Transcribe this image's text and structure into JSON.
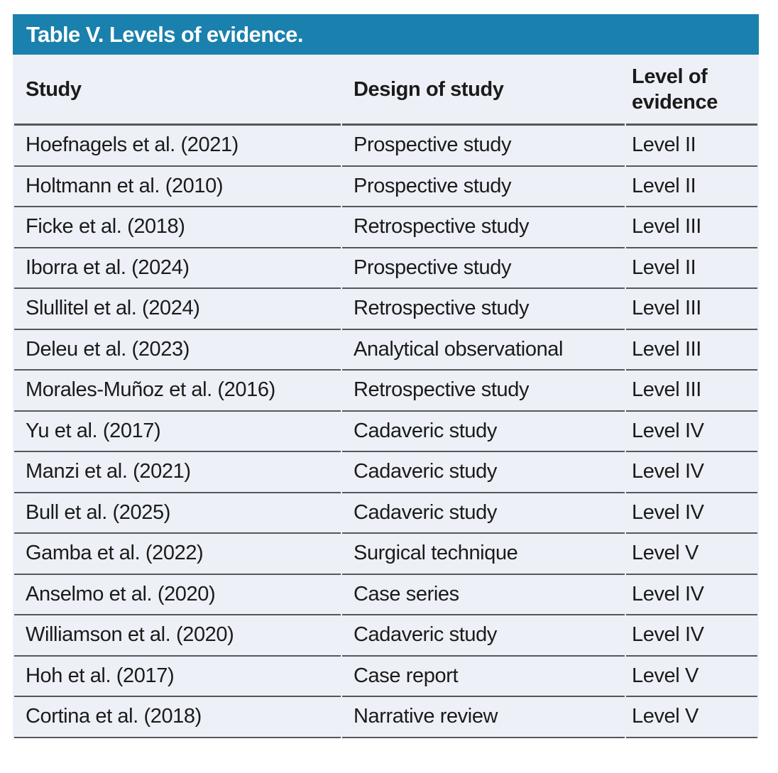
{
  "title": "Table V. Levels of evidence.",
  "columns": {
    "study": "Study",
    "design": "Design of study",
    "level": "Level of evidence"
  },
  "rows": [
    {
      "study": "Hoefnagels et al. (2021)",
      "design": "Prospective study",
      "level": "Level II"
    },
    {
      "study": "Holtmann et al. (2010)",
      "design": "Prospective study",
      "level": "Level II"
    },
    {
      "study": "Ficke et al. (2018)",
      "design": "Retrospective study",
      "level": "Level III"
    },
    {
      "study": "Iborra et al. (2024)",
      "design": "Prospective study",
      "level": "Level II"
    },
    {
      "study": "Slullitel et al. (2024)",
      "design": "Retrospective study",
      "level": "Level III"
    },
    {
      "study": "Deleu et al. (2023)",
      "design": "Analytical observational",
      "level": "Level III"
    },
    {
      "study": "Morales-Muñoz et al. (2016)",
      "design": "Retrospective study",
      "level": "Level III"
    },
    {
      "study": "Yu et al. (2017)",
      "design": "Cadaveric study",
      "level": "Level IV"
    },
    {
      "study": "Manzi et al. (2021)",
      "design": "Cadaveric study",
      "level": "Level IV"
    },
    {
      "study": "Bull et al. (2025)",
      "design": "Cadaveric study",
      "level": "Level IV"
    },
    {
      "study": "Gamba et al. (2022)",
      "design": "Surgical technique",
      "level": "Level V"
    },
    {
      "study": "Anselmo et al. (2020)",
      "design": "Case series",
      "level": "Level IV"
    },
    {
      "study": "Williamson et al. (2020)",
      "design": "Cadaveric study",
      "level": "Level IV"
    },
    {
      "study": "Hoh et al. (2017)",
      "design": "Case report",
      "level": "Level V"
    },
    {
      "study": "Cortina et al. (2018)",
      "design": "Narrative review",
      "level": "Level V"
    }
  ],
  "colors": {
    "header_bar": "#1a80ad",
    "row_background": "#edf0f6",
    "rule": "#54575b",
    "title_text": "#ffffff",
    "body_text": "#1b1b1b"
  }
}
